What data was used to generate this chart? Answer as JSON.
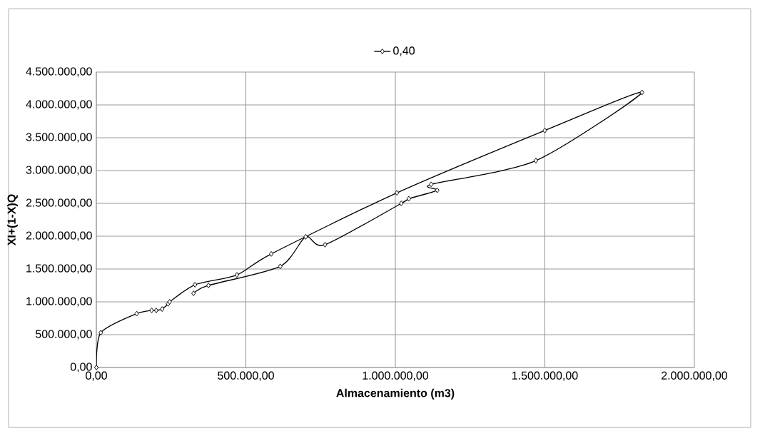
{
  "chart_data": {
    "type": "line",
    "xlabel": "Almacenamiento (m3)",
    "ylabel": "XI+(1-X)Q",
    "series": [
      {
        "name": "0,40",
        "color": "#000000",
        "x": [
          0,
          15000,
          135000,
          185000,
          200000,
          220000,
          240000,
          245000,
          330000,
          470000,
          585000,
          1005000,
          1500000,
          1825000,
          1470000,
          1120000,
          1140000,
          1045000,
          1020000,
          765000,
          700000,
          615000,
          375000,
          325000
        ],
        "values": [
          0,
          530000,
          820000,
          870000,
          870000,
          890000,
          970000,
          1000000,
          1260000,
          1410000,
          1730000,
          2660000,
          3610000,
          4190000,
          3150000,
          2790000,
          2700000,
          2570000,
          2500000,
          1870000,
          1990000,
          1540000,
          1250000,
          1130000
        ]
      }
    ],
    "xlim": [
      0,
      2000000
    ],
    "xticks": [
      {
        "value": 0,
        "label": "0,00"
      },
      {
        "value": 500000,
        "label": "500.000,00"
      },
      {
        "value": 1000000,
        "label": "1.000.000,00"
      },
      {
        "value": 1500000,
        "label": "1.500.000,00"
      },
      {
        "value": 2000000,
        "label": "2.000.000,00"
      }
    ],
    "ylim": [
      0,
      4500000
    ],
    "yticks": [
      {
        "value": 0,
        "label": "0,00"
      },
      {
        "value": 500000,
        "label": "500.000,00"
      },
      {
        "value": 1000000,
        "label": "1.000.000,00"
      },
      {
        "value": 1500000,
        "label": "1.500.000,00"
      },
      {
        "value": 2000000,
        "label": "2.000.000,00"
      },
      {
        "value": 2500000,
        "label": "2.500.000,00"
      },
      {
        "value": 3000000,
        "label": "3.000.000,00"
      },
      {
        "value": 3500000,
        "label": "3.500.000,00"
      },
      {
        "value": 4000000,
        "label": "4.000.000,00"
      },
      {
        "value": 4500000,
        "label": "4.500.000,00"
      }
    ],
    "grid": true,
    "legend": "top",
    "marker": "diamond",
    "line_style": "solid"
  }
}
